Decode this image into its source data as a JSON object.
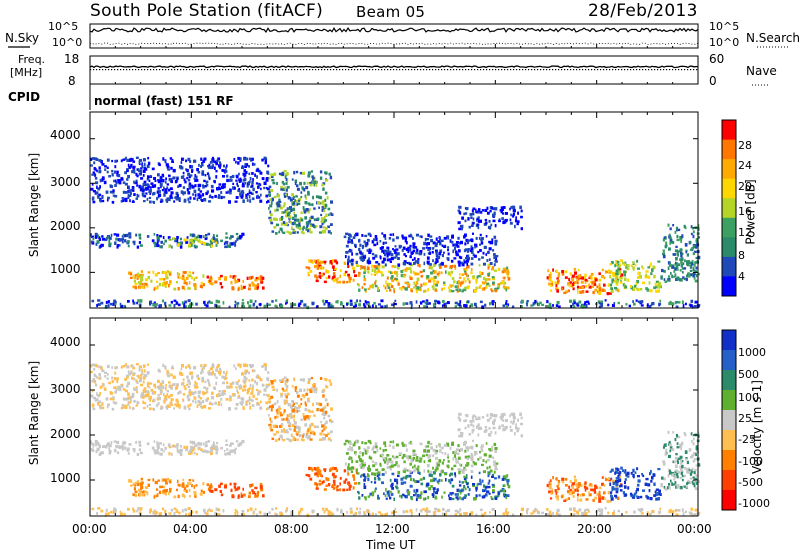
{
  "header": {
    "station": "South Pole Station (fitACF)",
    "beam": "Beam 05",
    "date": "28/Feb/2013"
  },
  "panels": {
    "noise": {
      "left_label": "N.Sky",
      "right_label": "N.Search",
      "ticks_left": [
        "10^5",
        "10^0"
      ],
      "ticks_right": [
        "10^5",
        "10^0"
      ]
    },
    "freq": {
      "left_label": "Freq.",
      "left_unit": "[MHz]",
      "right_label": "Nave",
      "ticks_left": [
        "18",
        "8"
      ],
      "ticks_right": [
        "60",
        "0"
      ]
    },
    "cpid": {
      "left_label": "CPID",
      "text": "normal (fast) 151 RF"
    }
  },
  "chart_data": [
    {
      "type": "heatmap",
      "title": "",
      "xlabel": "",
      "ylabel": "Slant Range [km]",
      "y_ticks": [
        "1000",
        "2000",
        "3000",
        "4000"
      ],
      "ylim": [
        200,
        4600
      ],
      "colorbar_label": "Power [dB]",
      "colorbar_ticks": [
        "28",
        "24",
        "20",
        "16",
        "12",
        "8",
        "4"
      ],
      "colorbar_colors": [
        "#ff0000",
        "#ff7700",
        "#ffaa00",
        "#ffd700",
        "#b4d428",
        "#3ca062",
        "#2a8a6a",
        "#1f48b8",
        "#0000ff"
      ]
    },
    {
      "type": "heatmap",
      "title": "",
      "xlabel": "Time UT",
      "ylabel": "Slant Range [km]",
      "x_ticks": [
        "00:00",
        "04:00",
        "08:00",
        "12:00",
        "16:00",
        "20:00",
        "00:00"
      ],
      "y_ticks": [
        "1000",
        "2000",
        "3000",
        "4000"
      ],
      "ylim": [
        200,
        4600
      ],
      "colorbar_label": "Velocity [m s-1]",
      "colorbar_ticks": [
        "1000",
        "500",
        "100",
        "25",
        "-25",
        "-100",
        "-500",
        "-1000"
      ],
      "colorbar_colors": [
        "#1030c8",
        "#2460c8",
        "#2a8a6a",
        "#60b030",
        "#c8c8c8",
        "#ffbe50",
        "#ff8000",
        "#ff4000",
        "#ff0000"
      ]
    }
  ]
}
